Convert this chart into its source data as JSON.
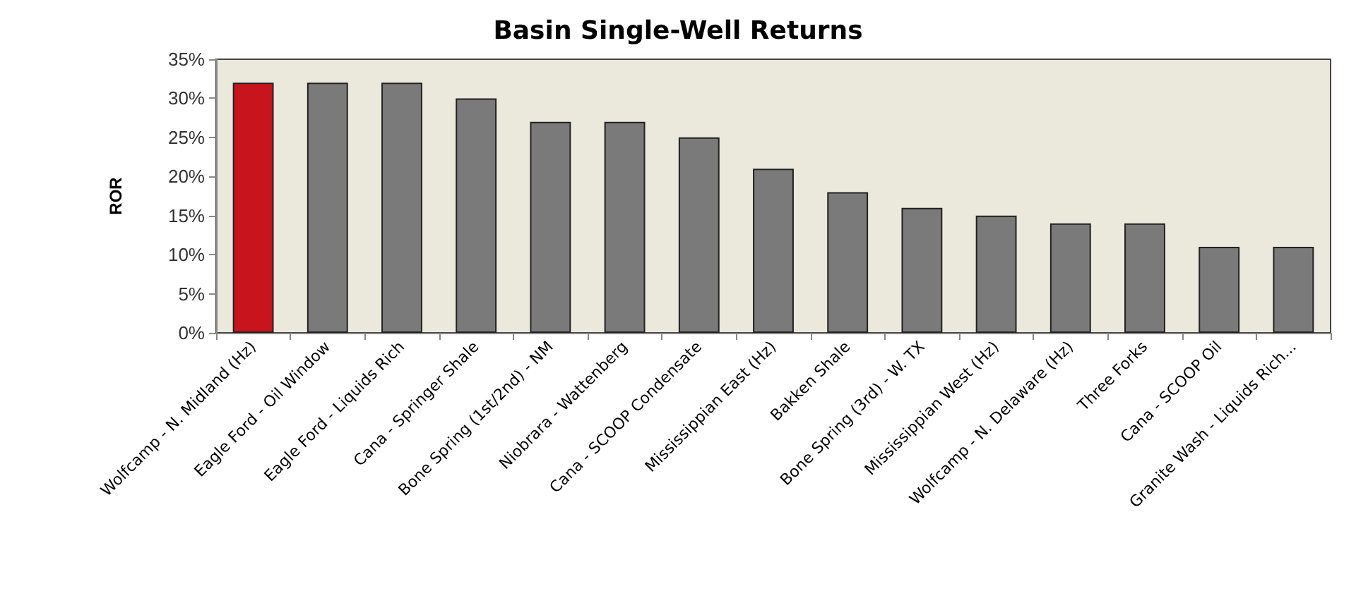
{
  "chart_data": {
    "type": "bar",
    "title": "Basin Single-Well Returns",
    "ylabel": "ROR",
    "categories": [
      "Wolfcamp - N. Midland (Hz)",
      "Eagle Ford - Oil Window",
      "Eagle Ford - Liquids Rich",
      "Cana - Springer Shale",
      "Bone Spring (1st/2nd) - NM",
      "Niobrara - Wattenberg",
      "Cana - SCOOP Condensate",
      "Mississippian East (Hz)",
      "Bakken Shale",
      "Bone Spring (3rd) - W. TX",
      "Mississippian West (Hz)",
      "Wolfcamp - N. Delaware (Hz)",
      "Three Forks",
      "Cana - SCOOP Oil",
      "Granite Wash - Liquids Rich..."
    ],
    "values": [
      32,
      32,
      32,
      30,
      27,
      27,
      25,
      21,
      18,
      16,
      15,
      14,
      14,
      11,
      11
    ],
    "colors": [
      "#c8151d",
      "#7a7a7a",
      "#7a7a7a",
      "#7a7a7a",
      "#7a7a7a",
      "#7a7a7a",
      "#7a7a7a",
      "#7a7a7a",
      "#7a7a7a",
      "#7a7a7a",
      "#7a7a7a",
      "#7a7a7a",
      "#7a7a7a",
      "#7a7a7a",
      "#7a7a7a"
    ],
    "ylim": [
      0,
      35
    ],
    "yticks": [
      {
        "value": 0,
        "label": "0%"
      },
      {
        "value": 5,
        "label": "5%"
      },
      {
        "value": 10,
        "label": "10%"
      },
      {
        "value": 15,
        "label": "15%"
      },
      {
        "value": 20,
        "label": "20%"
      },
      {
        "value": 25,
        "label": "25%"
      },
      {
        "value": 30,
        "label": "30%"
      },
      {
        "value": 35,
        "label": "35%"
      }
    ],
    "grid": false
  }
}
